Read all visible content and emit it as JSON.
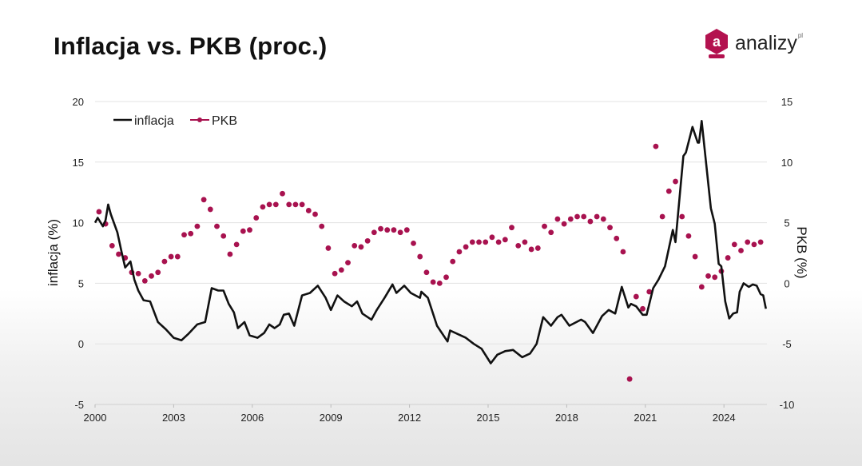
{
  "header": {
    "title": "Inflacja vs. PKB (proc.)"
  },
  "logo": {
    "mark": "a",
    "name": "analizy",
    "suffix": "pl"
  },
  "colors": {
    "inflacja": "#111111",
    "pkb": "#a8124f",
    "brand": "#b3124f"
  },
  "chart_data": {
    "type": "line",
    "title": "Inflacja vs. PKB (proc.)",
    "xlabel": "",
    "ylabel": "inflacja (%)",
    "y2label": "PKB (%)",
    "xlim": [
      2000,
      2025.7
    ],
    "ylim": [
      -5,
      20
    ],
    "y2lim": [
      -10,
      15
    ],
    "xticks": [
      "2000",
      "2003",
      "2006",
      "2009",
      "2012",
      "2015",
      "2018",
      "2021",
      "2024"
    ],
    "yticks": [
      "-5",
      "0",
      "5",
      "10",
      "15",
      "20"
    ],
    "y2ticks": [
      "-10",
      "-5",
      "0",
      "5",
      "10",
      "15"
    ],
    "grid": true,
    "legend": {
      "placement": "top-left",
      "entries": [
        "inflacja",
        "PKB"
      ]
    },
    "series": [
      {
        "name": "inflacja",
        "axis": "left",
        "style": "line",
        "points": [
          [
            2000.0,
            10.0
          ],
          [
            2000.1,
            10.4
          ],
          [
            2000.3,
            9.7
          ],
          [
            2000.4,
            10.2
          ],
          [
            2000.5,
            11.5
          ],
          [
            2000.6,
            10.7
          ],
          [
            2000.85,
            9.2
          ],
          [
            2001.0,
            7.7
          ],
          [
            2001.15,
            6.3
          ],
          [
            2001.35,
            6.8
          ],
          [
            2001.5,
            5.3
          ],
          [
            2001.65,
            4.4
          ],
          [
            2001.85,
            3.6
          ],
          [
            2002.1,
            3.5
          ],
          [
            2002.4,
            1.8
          ],
          [
            2002.7,
            1.2
          ],
          [
            2003.0,
            0.5
          ],
          [
            2003.3,
            0.3
          ],
          [
            2003.55,
            0.8
          ],
          [
            2003.9,
            1.6
          ],
          [
            2004.2,
            1.8
          ],
          [
            2004.45,
            4.6
          ],
          [
            2004.7,
            4.4
          ],
          [
            2004.9,
            4.4
          ],
          [
            2005.1,
            3.3
          ],
          [
            2005.3,
            2.6
          ],
          [
            2005.45,
            1.3
          ],
          [
            2005.7,
            1.8
          ],
          [
            2005.9,
            0.7
          ],
          [
            2006.2,
            0.5
          ],
          [
            2006.45,
            0.9
          ],
          [
            2006.65,
            1.6
          ],
          [
            2006.85,
            1.3
          ],
          [
            2007.05,
            1.6
          ],
          [
            2007.2,
            2.4
          ],
          [
            2007.4,
            2.5
          ],
          [
            2007.6,
            1.5
          ],
          [
            2007.9,
            4.0
          ],
          [
            2008.2,
            4.2
          ],
          [
            2008.5,
            4.8
          ],
          [
            2008.8,
            3.8
          ],
          [
            2009.0,
            2.8
          ],
          [
            2009.25,
            4.0
          ],
          [
            2009.5,
            3.5
          ],
          [
            2009.8,
            3.1
          ],
          [
            2010.0,
            3.5
          ],
          [
            2010.2,
            2.5
          ],
          [
            2010.55,
            2.0
          ],
          [
            2010.75,
            2.8
          ],
          [
            2011.05,
            3.8
          ],
          [
            2011.35,
            4.9
          ],
          [
            2011.5,
            4.2
          ],
          [
            2011.8,
            4.8
          ],
          [
            2012.05,
            4.2
          ],
          [
            2012.4,
            3.8
          ],
          [
            2012.45,
            4.3
          ],
          [
            2012.7,
            3.8
          ],
          [
            2013.05,
            1.5
          ],
          [
            2013.45,
            0.2
          ],
          [
            2013.55,
            1.1
          ],
          [
            2013.85,
            0.8
          ],
          [
            2014.15,
            0.5
          ],
          [
            2014.45,
            0.0
          ],
          [
            2014.75,
            -0.4
          ],
          [
            2015.1,
            -1.6
          ],
          [
            2015.35,
            -0.9
          ],
          [
            2015.65,
            -0.6
          ],
          [
            2015.95,
            -0.5
          ],
          [
            2016.3,
            -1.1
          ],
          [
            2016.6,
            -0.8
          ],
          [
            2016.85,
            0.0
          ],
          [
            2017.1,
            2.2
          ],
          [
            2017.4,
            1.5
          ],
          [
            2017.65,
            2.2
          ],
          [
            2017.8,
            2.4
          ],
          [
            2018.1,
            1.5
          ],
          [
            2018.55,
            2.0
          ],
          [
            2018.7,
            1.8
          ],
          [
            2019.0,
            0.9
          ],
          [
            2019.35,
            2.3
          ],
          [
            2019.6,
            2.8
          ],
          [
            2019.85,
            2.5
          ],
          [
            2020.1,
            4.7
          ],
          [
            2020.35,
            3.0
          ],
          [
            2020.45,
            3.3
          ],
          [
            2020.65,
            3.1
          ],
          [
            2020.9,
            2.4
          ],
          [
            2021.05,
            2.4
          ],
          [
            2021.3,
            4.6
          ],
          [
            2021.5,
            5.3
          ],
          [
            2021.75,
            6.4
          ],
          [
            2022.05,
            9.4
          ],
          [
            2022.15,
            8.4
          ],
          [
            2022.45,
            15.5
          ],
          [
            2022.55,
            15.8
          ],
          [
            2022.8,
            17.9
          ],
          [
            2023.0,
            16.6
          ],
          [
            2023.05,
            16.6
          ],
          [
            2023.15,
            18.4
          ],
          [
            2023.5,
            11.2
          ],
          [
            2023.65,
            9.9
          ],
          [
            2023.8,
            6.6
          ],
          [
            2023.9,
            6.4
          ],
          [
            2024.05,
            3.5
          ],
          [
            2024.2,
            2.1
          ],
          [
            2024.35,
            2.5
          ],
          [
            2024.5,
            2.6
          ],
          [
            2024.6,
            4.3
          ],
          [
            2024.75,
            5.0
          ],
          [
            2024.95,
            4.7
          ],
          [
            2025.1,
            4.9
          ],
          [
            2025.25,
            4.8
          ],
          [
            2025.4,
            4.1
          ],
          [
            2025.5,
            4.0
          ],
          [
            2025.6,
            2.9
          ]
        ]
      },
      {
        "name": "PKB",
        "axis": "right",
        "style": "markers",
        "x_start": 2000.15,
        "x_step": 0.25,
        "values": [
          5.9,
          4.9,
          3.1,
          2.4,
          2.1,
          0.9,
          0.8,
          0.2,
          0.6,
          0.9,
          1.8,
          2.2,
          2.2,
          4.0,
          4.1,
          4.7,
          6.9,
          6.1,
          4.7,
          3.9,
          2.4,
          3.2,
          4.3,
          4.4,
          5.4,
          6.3,
          6.5,
          6.5,
          7.4,
          6.5,
          6.5,
          6.5,
          6.0,
          5.7,
          4.7,
          2.9,
          0.8,
          1.1,
          1.7,
          3.1,
          3.0,
          3.5,
          4.2,
          4.5,
          4.4,
          4.4,
          4.2,
          4.4,
          3.3,
          2.2,
          0.9,
          0.1,
          0.0,
          0.5,
          1.8,
          2.6,
          3.0,
          3.4,
          3.4,
          3.4,
          3.8,
          3.4,
          3.6,
          4.6,
          3.1,
          3.4,
          2.8,
          2.9,
          4.7,
          4.2,
          5.3,
          4.9,
          5.3,
          5.5,
          5.5,
          5.1,
          5.5,
          5.3,
          4.6,
          3.7,
          2.6,
          -7.9,
          -1.1,
          -2.1,
          -0.7,
          11.3,
          5.5,
          7.6,
          8.4,
          5.5,
          3.9,
          2.2,
          -0.3,
          0.6,
          0.5,
          1.0,
          2.1,
          3.2,
          2.7,
          3.4,
          3.2,
          3.4
        ]
      }
    ]
  }
}
